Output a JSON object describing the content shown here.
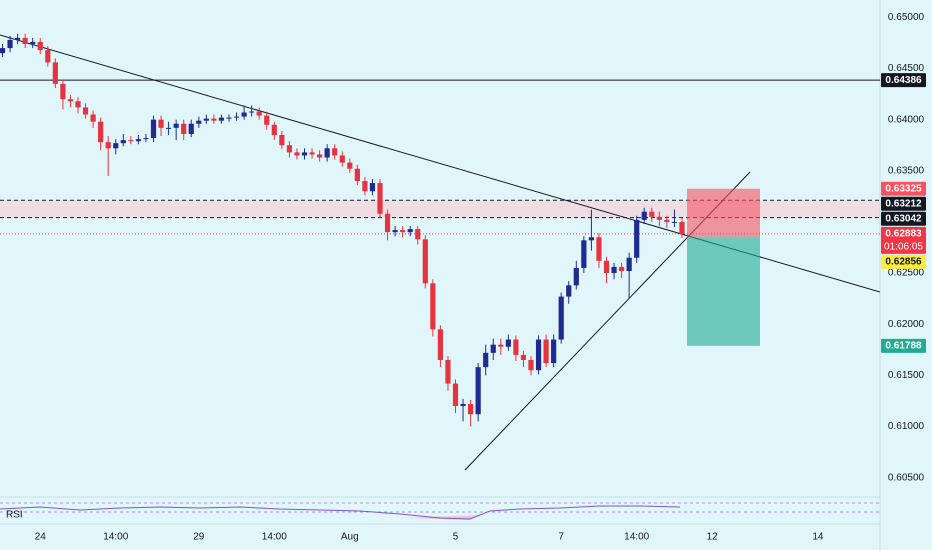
{
  "chart_data": {
    "type": "candlestick",
    "up_color": "#1e2b8f",
    "down_color": "#e5343f",
    "categories": [
      null,
      null,
      null,
      null,
      null,
      "24",
      null,
      null,
      null,
      null,
      null,
      null,
      null,
      null,
      null,
      "14:00",
      null,
      null,
      null,
      null,
      null,
      null,
      null,
      null,
      null,
      null,
      "29",
      null,
      null,
      null,
      null,
      null,
      null,
      null,
      null,
      null,
      "14:00",
      null,
      null,
      null,
      null,
      null,
      null,
      null,
      null,
      null,
      "Aug",
      null,
      null,
      null,
      null,
      null,
      null,
      null,
      null,
      null,
      null,
      null,
      null,
      null,
      "5",
      null,
      null,
      null,
      null,
      null,
      null,
      null,
      null,
      null,
      null,
      null,
      null,
      null,
      "7",
      null,
      null,
      null,
      null,
      null,
      null,
      null,
      null,
      null,
      "14:00",
      null,
      null,
      null,
      null,
      null,
      null,
      null,
      null,
      null,
      "12",
      null,
      null,
      null,
      null,
      null,
      null,
      null,
      null,
      null,
      null,
      null,
      null,
      null,
      "14"
    ],
    "open": [
      0.6465,
      0.647,
      0.6478,
      0.648,
      0.6474,
      0.6476,
      0.6468,
      0.6456,
      0.6435,
      0.642,
      0.6418,
      0.6412,
      0.6405,
      0.6398,
      0.6378,
      0.6372,
      0.6377,
      0.638,
      0.6379,
      0.6381,
      0.6382,
      0.64,
      0.6392,
      0.6392,
      0.6396,
      0.6386,
      0.6396,
      0.6399,
      0.6401,
      0.6399,
      0.6402,
      0.6402,
      0.6403,
      0.6407,
      0.6408,
      0.6404,
      0.6395,
      0.6385,
      0.6375,
      0.6368,
      0.6365,
      0.6368,
      0.6366,
      0.6363,
      0.6372,
      0.6365,
      0.6358,
      0.6352,
      0.634,
      0.633,
      0.6338,
      0.6308,
      0.629,
      0.6292,
      0.629,
      0.6293,
      0.6283,
      0.624,
      0.6195,
      0.6165,
      0.6142,
      0.612,
      0.6122,
      0.6112,
      0.6158,
      0.6172,
      0.618,
      0.6178,
      0.6185,
      0.617,
      0.6165,
      0.6155,
      0.6185,
      0.6162,
      0.6185,
      0.6227,
      0.6238,
      0.6255,
      0.6282,
      0.6285,
      0.6262,
      0.625,
      0.6256,
      0.6252,
      0.6265,
      0.6302,
      0.631,
      0.6305,
      0.6302,
      0.63,
      0.63,
      null,
      null,
      null,
      null,
      null,
      null,
      null,
      null,
      null,
      null,
      null,
      null,
      null,
      null,
      null,
      null,
      null,
      null
    ],
    "high": [
      0.6474,
      0.6482,
      0.6484,
      0.6484,
      0.648,
      0.648,
      0.6472,
      0.646,
      0.6439,
      0.6424,
      0.6422,
      0.6416,
      0.6409,
      0.6402,
      0.6384,
      0.6381,
      0.6386,
      0.6384,
      0.6385,
      0.6386,
      0.6404,
      0.6404,
      0.6398,
      0.64,
      0.64,
      0.64,
      0.6403,
      0.6405,
      0.6405,
      0.6405,
      0.6405,
      0.6407,
      0.6414,
      0.6414,
      0.6412,
      0.6408,
      0.6398,
      0.6389,
      0.6379,
      0.6372,
      0.6372,
      0.6372,
      0.637,
      0.6376,
      0.6376,
      0.6369,
      0.6362,
      0.6356,
      0.6344,
      0.6342,
      0.6342,
      0.6312,
      0.6296,
      0.6296,
      0.6296,
      0.6296,
      0.6287,
      0.6244,
      0.6199,
      0.6169,
      0.6146,
      0.6127,
      0.6126,
      0.6162,
      0.618,
      0.6186,
      0.6186,
      0.619,
      0.6189,
      0.6174,
      0.6169,
      0.6189,
      0.619,
      0.619,
      0.6231,
      0.6242,
      0.6262,
      0.6286,
      0.6312,
      0.6289,
      0.6266,
      0.626,
      0.626,
      0.627,
      0.6306,
      0.6314,
      0.6314,
      0.631,
      0.6306,
      0.6312,
      0.6304,
      null,
      null,
      null,
      null,
      null,
      null,
      null,
      null,
      null,
      null,
      null,
      null,
      null,
      null,
      null,
      null,
      null,
      null
    ],
    "low": [
      0.6461,
      0.6466,
      0.6474,
      0.647,
      0.647,
      0.6464,
      0.6452,
      0.6431,
      0.641,
      0.6412,
      0.6406,
      0.6401,
      0.6392,
      0.637,
      0.6345,
      0.6366,
      0.6374,
      0.6376,
      0.6376,
      0.6378,
      0.6378,
      0.6384,
      0.6385,
      0.638,
      0.638,
      0.6383,
      0.6392,
      0.6396,
      0.6396,
      0.6396,
      0.6398,
      0.6399,
      0.64,
      0.6403,
      0.64,
      0.639,
      0.638,
      0.6371,
      0.6363,
      0.6361,
      0.6361,
      0.6362,
      0.6359,
      0.6359,
      0.6361,
      0.6354,
      0.6348,
      0.6336,
      0.6326,
      0.6326,
      0.6304,
      0.6282,
      0.6286,
      0.6285,
      0.6286,
      0.6278,
      0.6235,
      0.6188,
      0.6158,
      0.6135,
      0.6113,
      0.6105,
      0.61,
      0.6105,
      0.615,
      0.6165,
      0.617,
      0.6174,
      0.6164,
      0.6158,
      0.615,
      0.6151,
      0.6158,
      0.6158,
      0.6181,
      0.622,
      0.6234,
      0.625,
      0.6272,
      0.6255,
      0.624,
      0.6244,
      0.6245,
      0.6225,
      0.626,
      0.6298,
      0.63,
      0.6296,
      0.6294,
      0.6295,
      0.6284,
      null,
      null,
      null,
      null,
      null,
      null,
      null,
      null,
      null,
      null,
      null,
      null,
      null,
      null,
      null,
      null,
      null,
      null
    ],
    "close": [
      0.647,
      0.6478,
      0.648,
      0.6474,
      0.6476,
      0.6468,
      0.6456,
      0.6435,
      0.642,
      0.6418,
      0.6412,
      0.6405,
      0.6398,
      0.6378,
      0.6372,
      0.6377,
      0.638,
      0.6379,
      0.6381,
      0.6382,
      0.64,
      0.6392,
      0.6392,
      0.6396,
      0.6386,
      0.6396,
      0.6399,
      0.6401,
      0.6399,
      0.6402,
      0.6402,
      0.6403,
      0.6407,
      0.6408,
      0.6404,
      0.6395,
      0.6385,
      0.6375,
      0.6368,
      0.6365,
      0.6368,
      0.6366,
      0.6363,
      0.6372,
      0.6365,
      0.6358,
      0.6352,
      0.634,
      0.633,
      0.6338,
      0.6308,
      0.629,
      0.6292,
      0.629,
      0.6293,
      0.6283,
      0.624,
      0.6195,
      0.6165,
      0.6142,
      0.612,
      0.6122,
      0.6112,
      0.6158,
      0.6172,
      0.618,
      0.6178,
      0.6185,
      0.617,
      0.6165,
      0.6155,
      0.6185,
      0.6162,
      0.6185,
      0.6227,
      0.6238,
      0.6255,
      0.6282,
      0.6285,
      0.6262,
      0.625,
      0.6256,
      0.6252,
      0.6265,
      0.6302,
      0.631,
      0.6305,
      0.6302,
      0.63,
      0.63,
      0.6288,
      null,
      null,
      null,
      null,
      null,
      null,
      null,
      null,
      null,
      null,
      null,
      null,
      null,
      null,
      null,
      null,
      null,
      null
    ],
    "ylim": [
      0.6033,
      0.6517
    ],
    "yticks": [
      {
        "value": 0.65,
        "label": "0.65000"
      },
      {
        "value": 0.645,
        "label": "0.64500"
      },
      {
        "value": 0.64,
        "label": "0.64000"
      },
      {
        "value": 0.635,
        "label": "0.63500"
      },
      {
        "value": 0.63,
        "label": "0.63000"
      },
      {
        "value": 0.625,
        "label": "0.62500"
      },
      {
        "value": 0.62,
        "label": "0.62000"
      },
      {
        "value": 0.615,
        "label": "0.61500"
      },
      {
        "value": 0.61,
        "label": "0.61000"
      },
      {
        "value": 0.605,
        "label": "0.60500"
      }
    ],
    "levels": [
      {
        "value": 0.64386,
        "color": "#131722",
        "text_color": "#ffffff",
        "line": "solid"
      },
      {
        "value": 0.63212,
        "color": "#131722",
        "text_color": "#ffffff",
        "line": "dashed"
      },
      {
        "value": 0.63042,
        "color": "#131722",
        "text_color": "#ffffff",
        "line": "dashed"
      },
      {
        "value": 0.62883,
        "color": "#f23645",
        "text_color": "#ffffff",
        "line": "dotted",
        "countdown": "01:06:05"
      }
    ],
    "position": {
      "stop": 0.63325,
      "stop_color": "#f7525f",
      "entry": 0.62856,
      "entry_color": "#ffeb3b",
      "target": 0.61788,
      "target_color": "#22ab94"
    },
    "indicator": "RSI"
  }
}
